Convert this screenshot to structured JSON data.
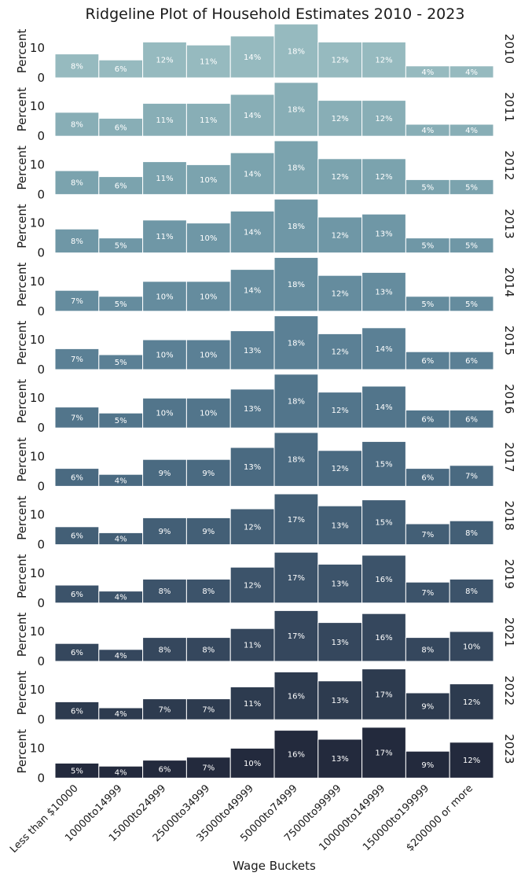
{
  "chart_data": {
    "type": "bar",
    "title": "Ridgeline Plot of Household Estimates 2010 - 2023",
    "xlabel": "Wage Buckets",
    "ylabel": "Percent",
    "yticks": [
      0,
      10
    ],
    "ylim": [
      0,
      18
    ],
    "categories": [
      "Less than $10000",
      "10000to14999",
      "15000to24999",
      "25000to34999",
      "35000to49999",
      "50000to74999",
      "75000to99999",
      "100000to149999",
      "150000to199999",
      "$200000 or more"
    ],
    "series": [
      {
        "name": "2010",
        "color": "#96babf",
        "values": [
          8,
          6,
          12,
          11,
          14,
          18,
          12,
          12,
          4,
          4
        ]
      },
      {
        "name": "2011",
        "color": "#88aeb6",
        "values": [
          8,
          6,
          11,
          11,
          14,
          18,
          12,
          12,
          4,
          4
        ]
      },
      {
        "name": "2012",
        "color": "#7ba3ae",
        "values": [
          8,
          6,
          11,
          10,
          14,
          18,
          12,
          12,
          5,
          5
        ]
      },
      {
        "name": "2013",
        "color": "#6f97a6",
        "values": [
          8,
          5,
          11,
          10,
          14,
          18,
          12,
          13,
          5,
          5
        ]
      },
      {
        "name": "2014",
        "color": "#658c9e",
        "values": [
          7,
          5,
          10,
          10,
          14,
          18,
          12,
          13,
          5,
          5
        ]
      },
      {
        "name": "2015",
        "color": "#5b8095",
        "values": [
          7,
          5,
          10,
          10,
          13,
          18,
          12,
          14,
          6,
          6
        ]
      },
      {
        "name": "2016",
        "color": "#52758b",
        "values": [
          7,
          5,
          10,
          10,
          13,
          18,
          12,
          14,
          6,
          6
        ]
      },
      {
        "name": "2017",
        "color": "#4a6a81",
        "values": [
          6,
          4,
          9,
          9,
          13,
          18,
          12,
          15,
          6,
          7
        ]
      },
      {
        "name": "2018",
        "color": "#435f76",
        "values": [
          6,
          4,
          9,
          9,
          12,
          17,
          13,
          15,
          7,
          8
        ]
      },
      {
        "name": "2019",
        "color": "#3c536a",
        "values": [
          6,
          4,
          8,
          8,
          12,
          17,
          13,
          16,
          7,
          8
        ]
      },
      {
        "name": "2021",
        "color": "#35475d",
        "values": [
          6,
          4,
          8,
          8,
          11,
          17,
          13,
          16,
          8,
          10
        ]
      },
      {
        "name": "2022",
        "color": "#2d3b4f",
        "values": [
          6,
          4,
          7,
          7,
          11,
          16,
          13,
          17,
          9,
          12
        ]
      },
      {
        "name": "2023",
        "color": "#232a3d",
        "values": [
          5,
          4,
          6,
          7,
          10,
          16,
          13,
          17,
          9,
          12
        ]
      }
    ],
    "data_labels": [
      [
        "8%",
        "6%",
        "12%",
        "11%",
        "14%",
        "18%",
        "12%",
        "12%",
        "4%",
        "4%"
      ],
      [
        "8%",
        "6%",
        "11%",
        "11%",
        "14%",
        "18%",
        "12%",
        "12%",
        "4%",
        "4%"
      ],
      [
        "8%",
        "6%",
        "11%",
        "10%",
        "14%",
        "18%",
        "12%",
        "12%",
        "5%",
        "5%"
      ],
      [
        "8%",
        "5%",
        "11%",
        "10%",
        "14%",
        "18%",
        "12%",
        "13%",
        "5%",
        "5%"
      ],
      [
        "7%",
        "5%",
        "10%",
        "10%",
        "14%",
        "18%",
        "12%",
        "13%",
        "5%",
        "5%"
      ],
      [
        "7%",
        "5%",
        "10%",
        "10%",
        "13%",
        "18%",
        "12%",
        "14%",
        "6%",
        "6%"
      ],
      [
        "7%",
        "5%",
        "10%",
        "10%",
        "13%",
        "18%",
        "12%",
        "14%",
        "6%",
        "6%"
      ],
      [
        "6%",
        "4%",
        "9%",
        "9%",
        "13%",
        "18%",
        "12%",
        "15%",
        "6%",
        "7%"
      ],
      [
        "6%",
        "4%",
        "9%",
        "9%",
        "12%",
        "17%",
        "13%",
        "15%",
        "7%",
        "8%"
      ],
      [
        "6%",
        "4%",
        "8%",
        "8%",
        "12%",
        "17%",
        "13%",
        "16%",
        "7%",
        "8%"
      ],
      [
        "6%",
        "4%",
        "8%",
        "8%",
        "11%",
        "17%",
        "13%",
        "16%",
        "8%",
        "10%"
      ],
      [
        "6%",
        "4%",
        "7%",
        "7%",
        "11%",
        "16%",
        "13%",
        "17%",
        "9%",
        "12%"
      ],
      [
        "5%",
        "4%",
        "6%",
        "7%",
        "10%",
        "16%",
        "13%",
        "17%",
        "9%",
        "12%"
      ]
    ],
    "grid": false,
    "legend": "none"
  }
}
